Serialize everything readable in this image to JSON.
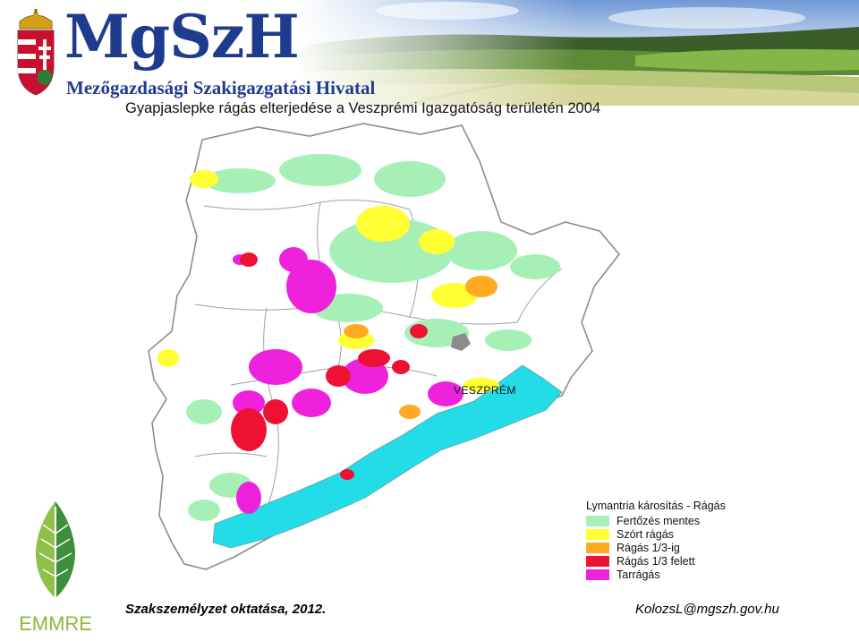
{
  "header": {
    "logo_text": "MgSzH",
    "logo_subtitle": "Mezőgazdasági Szakigazgatási Hivatal"
  },
  "map": {
    "title": "Gyapjaslepke rágás elterjedése a Veszprémi Igazgatóság területén 2004",
    "city_label": "VESZPRÉM",
    "colors": {
      "healthy": "#a6f0b8",
      "scattered": "#ffff33",
      "third": "#ffaa22",
      "over_third": "#ee1133",
      "total": "#ee22dd",
      "water": "#22dde8",
      "boundary": "#8c8c8c"
    }
  },
  "legend": {
    "title": "Lymantria károsítás - Rágás",
    "items": [
      {
        "label": "Fertőzés mentes",
        "color": "#a6f0b8"
      },
      {
        "label": "Szórt rágás",
        "color": "#ffff33"
      },
      {
        "label": "Rágás 1/3-ig",
        "color": "#ffaa22"
      },
      {
        "label": "Rágás 1/3 felett",
        "color": "#ee1133"
      },
      {
        "label": "Tarrágás",
        "color": "#ee22dd"
      }
    ]
  },
  "footer": {
    "left": "Szakszemélyzet oktatása, 2012.",
    "right": "KolozsL@mgszh.gov.hu",
    "org_logo_text": "EMMRE"
  }
}
